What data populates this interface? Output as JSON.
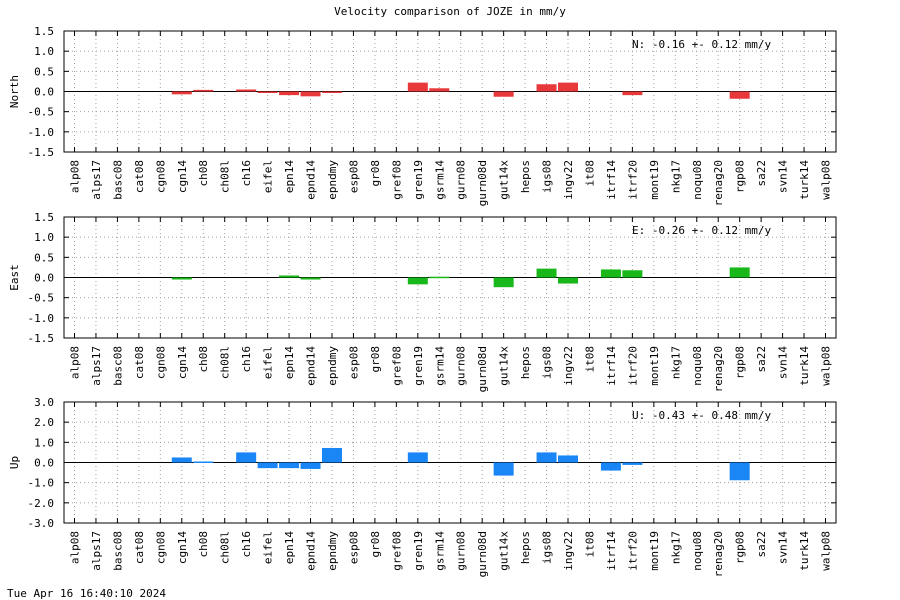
{
  "title": "Velocity comparison of JOZE in mm/y",
  "footer": "Tue Apr 16 16:40:10 2024",
  "chart_data": {
    "type": "bar",
    "title": "Velocity comparison of JOZE in mm/y",
    "categories": [
      "alp08",
      "alps17",
      "basc08",
      "cat08",
      "cgn08",
      "cgn14",
      "ch08",
      "ch08l",
      "ch16",
      "eifel",
      "epn14",
      "epnd14",
      "epndmy",
      "esp08",
      "gr08",
      "gref08",
      "gren19",
      "gsrm14",
      "gurn08",
      "gurn08d",
      "gut14x",
      "hepos",
      "igs08",
      "ingv22",
      "it08",
      "itrf14",
      "itrf20",
      "mont19",
      "nkg17",
      "noqu08",
      "renag20",
      "rgp08",
      "sa22",
      "svn14",
      "turk14",
      "walp08"
    ],
    "grid": true,
    "panels": [
      {
        "name": "North",
        "ylabel": "North",
        "ylim": [
          -1.5,
          1.5
        ],
        "ticks": [
          "1.5",
          "1.0",
          "0.5",
          "0.0",
          "-0.5",
          "-1.0",
          "-1.5"
        ],
        "annotation": "N:  -0.16 +-  0.12 mm/y",
        "color": "#e8393a",
        "values": [
          null,
          null,
          null,
          null,
          null,
          -0.07,
          0.04,
          null,
          0.05,
          -0.02,
          -0.09,
          -0.12,
          -0.03,
          null,
          null,
          null,
          0.22,
          0.08,
          null,
          null,
          -0.13,
          null,
          0.18,
          0.22,
          null,
          null,
          -0.09,
          null,
          null,
          null,
          null,
          -0.18,
          null,
          null,
          null,
          null
        ]
      },
      {
        "name": "East",
        "ylabel": "East",
        "ylim": [
          -1.5,
          1.5
        ],
        "ticks": [
          "1.5",
          "1.0",
          "0.5",
          "0.0",
          "-0.5",
          "-1.0",
          "-1.5"
        ],
        "annotation": "E:  -0.26 +-  0.12 mm/y",
        "color": "#18b81a",
        "values": [
          null,
          null,
          null,
          null,
          null,
          -0.05,
          null,
          null,
          null,
          null,
          0.05,
          -0.05,
          null,
          null,
          null,
          null,
          -0.17,
          0.02,
          null,
          null,
          -0.24,
          null,
          0.22,
          -0.15,
          null,
          0.2,
          0.18,
          null,
          null,
          null,
          null,
          0.25,
          null,
          null,
          null,
          null
        ]
      },
      {
        "name": "Up",
        "ylabel": "Up",
        "ylim": [
          -3.0,
          3.0
        ],
        "ticks": [
          "3.0",
          "2.0",
          "1.0",
          "0.0",
          "-1.0",
          "-2.0",
          "-3.0"
        ],
        "annotation": "U:  -0.43 +-  0.48 mm/y",
        "color": "#1a86f5",
        "values": [
          null,
          null,
          null,
          null,
          null,
          0.25,
          0.05,
          null,
          0.5,
          -0.28,
          -0.28,
          -0.32,
          0.72,
          null,
          null,
          null,
          0.5,
          null,
          null,
          null,
          -0.65,
          null,
          0.5,
          0.35,
          null,
          -0.4,
          -0.12,
          null,
          null,
          null,
          null,
          -0.88,
          null,
          null,
          null,
          null
        ]
      }
    ]
  }
}
